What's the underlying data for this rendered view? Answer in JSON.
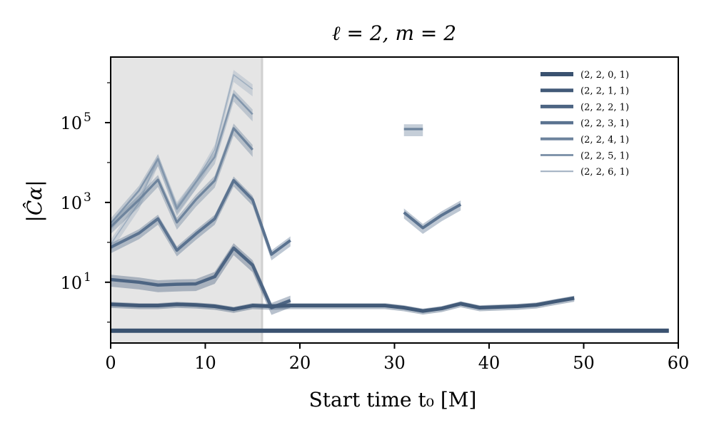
{
  "chart_data": {
    "type": "line",
    "title": "ℓ = 2, m = 2",
    "xlabel": "Start time t₀ [M]",
    "ylabel": "|Ĉα|",
    "yscale": "log",
    "xlim": [
      0,
      60
    ],
    "ylim": [
      0.3,
      4400000
    ],
    "xticks": [
      "0",
      "10",
      "20",
      "30",
      "40",
      "50",
      "60"
    ],
    "xtick_values": [
      0,
      10,
      20,
      30,
      40,
      50,
      60
    ],
    "yticks": [
      {
        "exp": 1,
        "base": "10",
        "sup": "1"
      },
      {
        "exp": 3,
        "base": "10",
        "sup": "3"
      },
      {
        "exp": 5,
        "base": "10",
        "sup": "5"
      }
    ],
    "shaded_region": [
      0,
      16
    ],
    "legend_position": "top-right",
    "series": [
      {
        "name": "(2, 2, 0, 1)",
        "color": "#3a5270",
        "x": [
          0,
          59
        ],
        "y": [
          0.61,
          0.61
        ],
        "band": 0.02
      },
      {
        "name": "(2, 2, 1, 1)",
        "color": "#425a78",
        "x": [
          0,
          3,
          5,
          7,
          9,
          11,
          13,
          15,
          17,
          19,
          21,
          23,
          25,
          27,
          29,
          31,
          33,
          35,
          37,
          39,
          41,
          43,
          45,
          47,
          49
        ],
        "y": [
          2.8,
          2.6,
          2.6,
          2.8,
          2.7,
          2.5,
          2.1,
          2.6,
          2.5,
          2.6,
          2.6,
          2.6,
          2.6,
          2.6,
          2.6,
          2.3,
          1.9,
          2.2,
          2.9,
          2.3,
          2.4,
          2.5,
          2.7,
          3.3,
          4.0
        ],
        "band": 0.06
      },
      {
        "name": "(2, 2, 2, 1)",
        "color": "#4d6583",
        "x": [
          0,
          3,
          5,
          7,
          9,
          11,
          13,
          15,
          17,
          19
        ],
        "y": [
          11.7,
          10,
          8.5,
          8.9,
          9.1,
          13.8,
          72,
          27,
          2.3,
          3.5
        ],
        "band": 0.12
      },
      {
        "name": "(2, 2, 3, 1)",
        "color": "#5b7390",
        "x": [
          0,
          3,
          5,
          7,
          9,
          11,
          13,
          15,
          17,
          19,
          null,
          31,
          33,
          35,
          37
        ],
        "y": [
          75,
          170,
          390,
          63,
          162,
          390,
          3550,
          1170,
          50,
          112,
          null,
          560,
          230,
          480,
          890
        ],
        "band": 0.1
      },
      {
        "name": "(2, 2, 4, 1)",
        "color": "#6e849d",
        "x": [
          0,
          3,
          5,
          7,
          9,
          11,
          13,
          15,
          null,
          31,
          33
        ],
        "y": [
          245,
          1170,
          3700,
          316,
          1170,
          3550,
          72000,
          21000,
          null,
          69000,
          69000
        ],
        "band": 0.12
      },
      {
        "name": "(2, 2, 5, 1)",
        "color": "#8296ac",
        "x": [
          0,
          3,
          5,
          7,
          9,
          11,
          13,
          15
        ],
        "y": [
          300,
          2000,
          12300,
          690,
          3200,
          13800,
          510000,
          162000
        ],
        "band": 0.12
      },
      {
        "name": "(2, 2, 6, 1)",
        "color": "#9fafc0",
        "x": [
          0,
          3,
          5,
          7,
          9,
          11,
          13,
          15
        ],
        "y": [
          89,
          1000,
          12300,
          780,
          3200,
          21000,
          1580000,
          690000
        ],
        "band": 0.12
      }
    ]
  }
}
